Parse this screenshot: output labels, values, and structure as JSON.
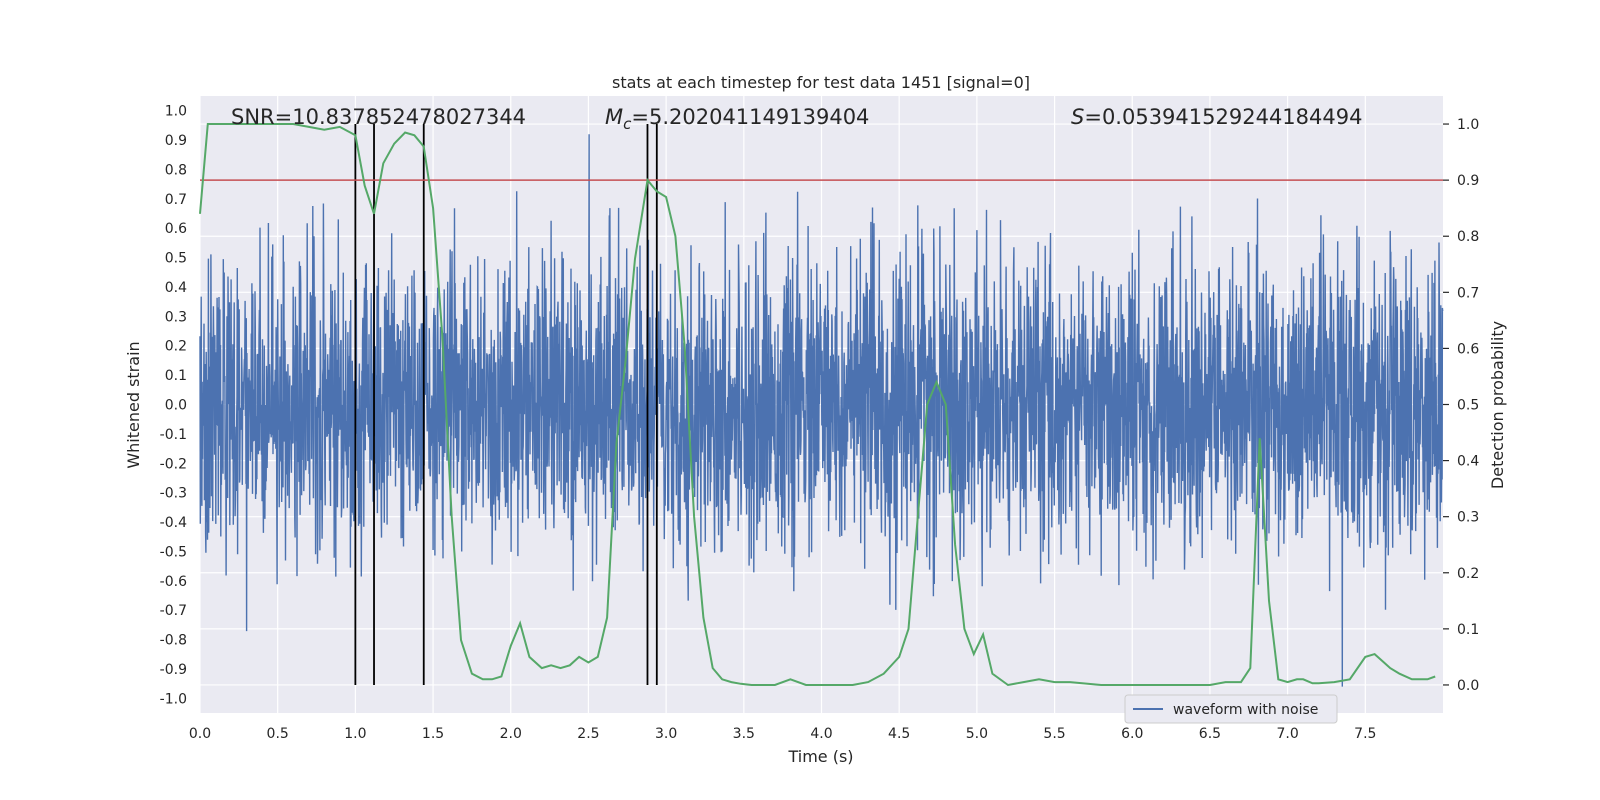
{
  "chart_data": {
    "type": "line",
    "title": "stats at each timestep for test data 1451 [signal=0]",
    "xlabel": "Time (s)",
    "ylabel": "Whitened strain",
    "y2label": "Detection probability",
    "xlim": [
      0.0,
      8.0
    ],
    "ylim": [
      -1.05,
      1.05
    ],
    "y2lim": [
      -0.05,
      1.05
    ],
    "x_ticks": [
      "0.0",
      "0.5",
      "1.0",
      "1.5",
      "2.0",
      "2.5",
      "3.0",
      "3.5",
      "4.0",
      "4.5",
      "5.0",
      "5.5",
      "6.0",
      "6.5",
      "7.0",
      "7.5"
    ],
    "y_ticks": [
      "1.0",
      "0.9",
      "0.8",
      "0.7",
      "0.6",
      "0.5",
      "0.4",
      "0.3",
      "0.2",
      "0.1",
      "0.0",
      "-0.1",
      "-0.2",
      "-0.3",
      "-0.4",
      "-0.5",
      "-0.6",
      "-0.7",
      "-0.8",
      "-0.9",
      "-1.0"
    ],
    "y2_ticks": [
      "1.0",
      "0.9",
      "0.8",
      "0.7",
      "0.6",
      "0.5",
      "0.4",
      "0.3",
      "0.2",
      "0.1",
      "0.0"
    ],
    "annotations": {
      "snr": "SNR=10.837852478027344",
      "mc": "=5.202041149139404",
      "mc_symbol": "M",
      "mc_sub": "c",
      "s": "=0.053941529244184494",
      "s_symbol": "S"
    },
    "threshold": 0.9,
    "vlines": [
      1.0,
      1.12,
      1.44,
      2.88,
      2.94
    ],
    "legend": {
      "label": "waveform with noise",
      "position": "lower-right"
    },
    "grid": true,
    "colors": {
      "strain": "#4c72b0",
      "probability": "#55a868",
      "threshold": "#c44e52",
      "vline": "#000000",
      "background": "#eaeaf2"
    },
    "probability_series": {
      "x": [
        0.0,
        0.05,
        0.1,
        0.2,
        0.3,
        0.4,
        0.5,
        0.6,
        0.7,
        0.8,
        0.9,
        1.0,
        1.06,
        1.12,
        1.18,
        1.25,
        1.32,
        1.38,
        1.44,
        1.5,
        1.56,
        1.62,
        1.68,
        1.75,
        1.82,
        1.88,
        1.94,
        2.0,
        2.06,
        2.12,
        2.2,
        2.26,
        2.32,
        2.38,
        2.44,
        2.5,
        2.56,
        2.62,
        2.68,
        2.74,
        2.8,
        2.88,
        2.94,
        3.0,
        3.06,
        3.12,
        3.18,
        3.24,
        3.3,
        3.36,
        3.42,
        3.48,
        3.55,
        3.6,
        3.7,
        3.8,
        3.9,
        4.0,
        4.1,
        4.2,
        4.3,
        4.4,
        4.5,
        4.56,
        4.62,
        4.68,
        4.74,
        4.8,
        4.86,
        4.92,
        4.98,
        5.04,
        5.1,
        5.2,
        5.3,
        5.4,
        5.5,
        5.6,
        5.8,
        6.0,
        6.2,
        6.4,
        6.5,
        6.6,
        6.7,
        6.76,
        6.82,
        6.88,
        6.94,
        7.0,
        7.06,
        7.1,
        7.16,
        7.2,
        7.3,
        7.4,
        7.5,
        7.56,
        7.62,
        7.66,
        7.72,
        7.8,
        7.9,
        7.95
      ],
      "y": [
        0.84,
        1.0,
        1.0,
        1.0,
        1.0,
        1.0,
        1.0,
        1.0,
        0.995,
        0.99,
        0.995,
        0.98,
        0.89,
        0.84,
        0.93,
        0.965,
        0.985,
        0.98,
        0.96,
        0.85,
        0.62,
        0.3,
        0.08,
        0.02,
        0.01,
        0.01,
        0.015,
        0.07,
        0.11,
        0.05,
        0.03,
        0.035,
        0.03,
        0.035,
        0.05,
        0.04,
        0.05,
        0.12,
        0.43,
        0.58,
        0.76,
        0.9,
        0.88,
        0.87,
        0.8,
        0.6,
        0.3,
        0.12,
        0.03,
        0.01,
        0.005,
        0.002,
        0.0,
        0.0,
        0.0,
        0.01,
        0.0,
        0.0,
        0.0,
        0.0,
        0.005,
        0.02,
        0.05,
        0.1,
        0.3,
        0.5,
        0.54,
        0.5,
        0.25,
        0.1,
        0.055,
        0.09,
        0.02,
        0.0,
        0.005,
        0.01,
        0.005,
        0.005,
        0.0,
        0.0,
        0.0,
        0.0,
        0.0,
        0.005,
        0.005,
        0.03,
        0.44,
        0.15,
        0.01,
        0.005,
        0.01,
        0.01,
        0.003,
        0.003,
        0.005,
        0.01,
        0.05,
        0.055,
        0.04,
        0.03,
        0.02,
        0.01,
        0.01,
        0.015
      ]
    }
  }
}
